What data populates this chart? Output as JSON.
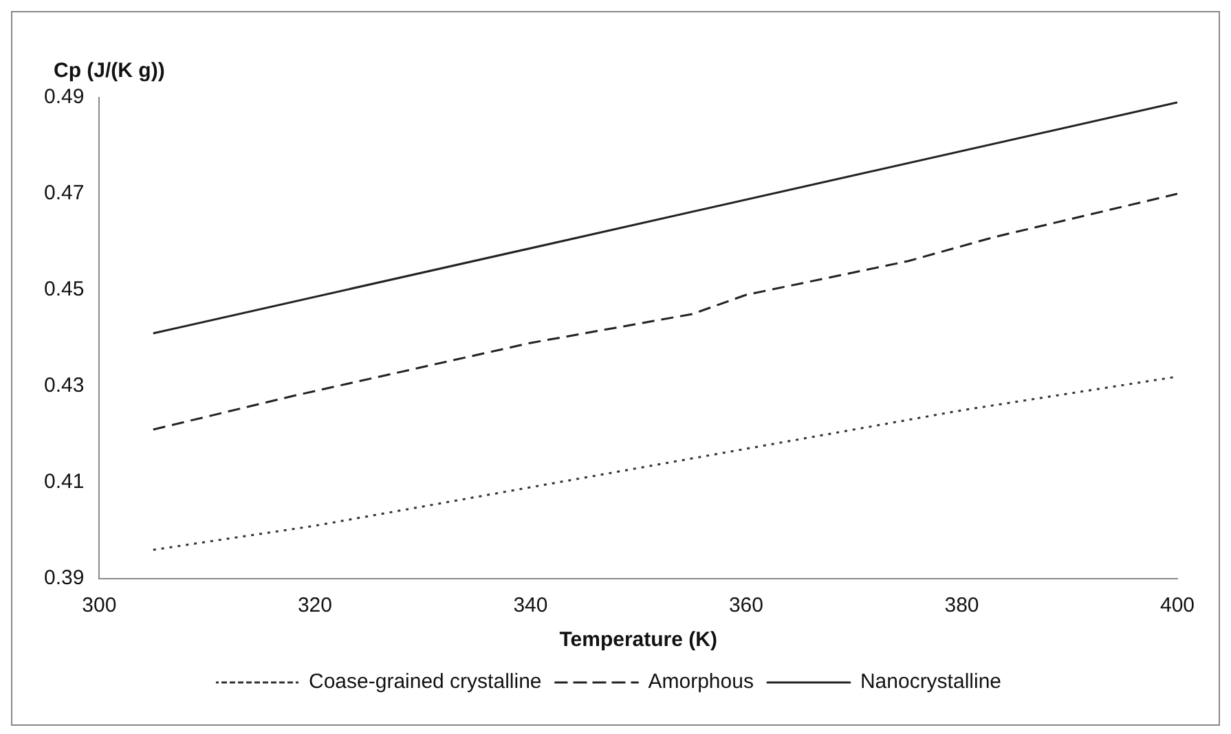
{
  "chart_data": {
    "type": "line",
    "ylabel": "Cp (J/(K g))",
    "xlabel": "Temperature (K)",
    "xlim": [
      300,
      400
    ],
    "xticks": [
      300,
      320,
      340,
      360,
      380,
      400
    ],
    "ylim": [
      0.39,
      0.49
    ],
    "yticks": [
      0.39,
      0.41,
      0.43,
      0.45,
      0.47,
      0.49
    ],
    "grid": false,
    "legend": "bottom",
    "marker": "none",
    "series": [
      {
        "name": "Coase-grained crystalline",
        "color": "#333333",
        "line_style": "dotted",
        "x": [
          305,
          320,
          340,
          360,
          380,
          400
        ],
        "values": [
          0.396,
          0.401,
          0.409,
          0.417,
          0.425,
          0.432
        ]
      },
      {
        "name": "Amorphous",
        "color": "#222222",
        "line_style": "dashed",
        "x": [
          305,
          318,
          330,
          340,
          355,
          360,
          375,
          383,
          400
        ],
        "values": [
          0.421,
          0.428,
          0.434,
          0.439,
          0.445,
          0.449,
          0.456,
          0.461,
          0.47
        ]
      },
      {
        "name": "Nanocrystalline",
        "color": "#222222",
        "line_style": "solid",
        "x": [
          305,
          400
        ],
        "values": [
          0.441,
          0.489
        ]
      }
    ]
  }
}
